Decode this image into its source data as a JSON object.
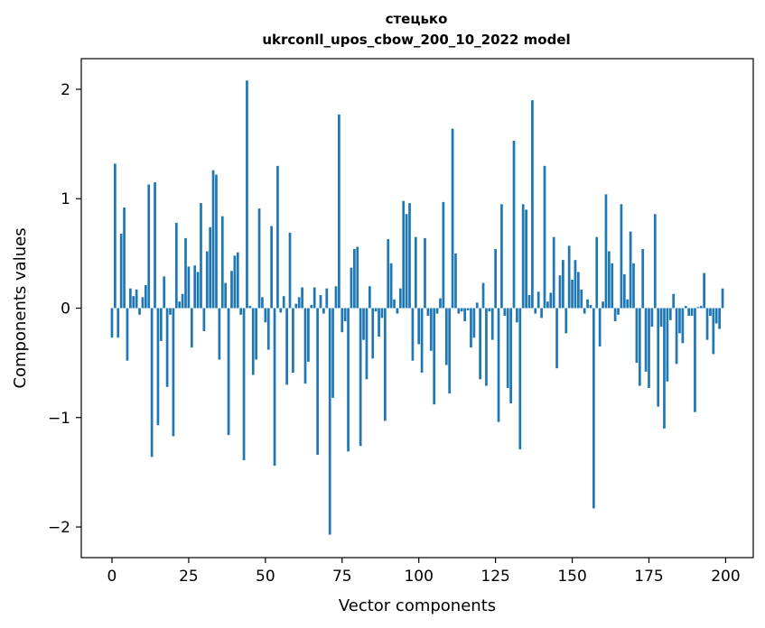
{
  "chart_data": {
    "type": "bar",
    "title_line1": "стецько",
    "title_line2": "ukrconll_upos_cbow_200_10_2022 model",
    "xlabel": "Vector components",
    "ylabel": "Components values",
    "xlim": [
      -10,
      209
    ],
    "ylim": [
      -2.28,
      2.28
    ],
    "xticks": [
      0,
      25,
      50,
      75,
      100,
      125,
      150,
      175,
      200
    ],
    "xtick_labels": [
      "0",
      "25",
      "50",
      "75",
      "100",
      "125",
      "150",
      "175",
      "200"
    ],
    "yticks": [
      -2,
      -1,
      0,
      1,
      2
    ],
    "ytick_labels": [
      "−2",
      "−1",
      "0",
      "1",
      "2"
    ],
    "bar_color": "#1f77b4",
    "grid": false,
    "x": [
      0,
      1,
      2,
      3,
      4,
      5,
      6,
      7,
      8,
      9,
      10,
      11,
      12,
      13,
      14,
      15,
      16,
      17,
      18,
      19,
      20,
      21,
      22,
      23,
      24,
      25,
      26,
      27,
      28,
      29,
      30,
      31,
      32,
      33,
      34,
      35,
      36,
      37,
      38,
      39,
      40,
      41,
      42,
      43,
      44,
      45,
      46,
      47,
      48,
      49,
      50,
      51,
      52,
      53,
      54,
      55,
      56,
      57,
      58,
      59,
      60,
      61,
      62,
      63,
      64,
      65,
      66,
      67,
      68,
      69,
      70,
      71,
      72,
      73,
      74,
      75,
      76,
      77,
      78,
      79,
      80,
      81,
      82,
      83,
      84,
      85,
      86,
      87,
      88,
      89,
      90,
      91,
      92,
      93,
      94,
      95,
      96,
      97,
      98,
      99,
      100,
      101,
      102,
      103,
      104,
      105,
      106,
      107,
      108,
      109,
      110,
      111,
      112,
      113,
      114,
      115,
      116,
      117,
      118,
      119,
      120,
      121,
      122,
      123,
      124,
      125,
      126,
      127,
      128,
      129,
      130,
      131,
      132,
      133,
      134,
      135,
      136,
      137,
      138,
      139,
      140,
      141,
      142,
      143,
      144,
      145,
      146,
      147,
      148,
      149,
      150,
      151,
      152,
      153,
      154,
      155,
      156,
      157,
      158,
      159,
      160,
      161,
      162,
      163,
      164,
      165,
      166,
      167,
      168,
      169,
      170,
      171,
      172,
      173,
      174,
      175,
      176,
      177,
      178,
      179,
      180,
      181,
      182,
      183,
      184,
      185,
      186,
      187,
      188,
      189,
      190,
      191,
      192,
      193,
      194,
      195,
      196,
      197,
      198,
      199
    ],
    "values": [
      -0.27,
      1.32,
      -0.27,
      0.68,
      0.92,
      -0.48,
      0.18,
      0.11,
      0.17,
      -0.06,
      0.1,
      0.21,
      1.13,
      -1.36,
      1.15,
      -1.07,
      -0.3,
      0.29,
      -0.72,
      -0.06,
      -1.17,
      0.78,
      0.06,
      0.13,
      0.64,
      0.38,
      -0.36,
      0.39,
      0.33,
      0.96,
      -0.21,
      0.52,
      0.74,
      1.26,
      1.22,
      -0.47,
      0.84,
      0.23,
      -1.16,
      0.34,
      0.48,
      0.51,
      -0.06,
      -1.39,
      2.08,
      0.02,
      -0.61,
      -0.47,
      0.91,
      0.1,
      -0.13,
      -0.38,
      0.75,
      -1.44,
      1.3,
      -0.04,
      0.11,
      -0.7,
      0.69,
      -0.59,
      0.04,
      0.1,
      0.19,
      -0.69,
      -0.49,
      0.03,
      0.19,
      -1.34,
      0.12,
      -0.05,
      0.18,
      -2.07,
      -0.82,
      0.2,
      1.77,
      -0.22,
      -0.12,
      -1.31,
      0.37,
      0.54,
      0.56,
      -1.26,
      -0.29,
      -0.65,
      0.2,
      -0.46,
      -0.03,
      -0.26,
      -0.09,
      -1.03,
      0.63,
      0.41,
      0.08,
      -0.05,
      0.18,
      0.98,
      0.86,
      0.96,
      -0.48,
      0.65,
      -0.33,
      -0.59,
      0.64,
      -0.07,
      -0.39,
      -0.88,
      -0.05,
      0.09,
      0.97,
      -0.52,
      -0.78,
      1.64,
      0.5,
      -0.05,
      -0.03,
      -0.12,
      -0.02,
      -0.36,
      -0.27,
      0.05,
      -0.65,
      0.23,
      -0.71,
      -0.03,
      -0.29,
      0.54,
      -1.04,
      0.95,
      -0.07,
      -0.73,
      -0.87,
      1.53,
      -0.13,
      -1.29,
      0.95,
      0.9,
      0.12,
      1.9,
      -0.05,
      0.15,
      -0.09,
      1.3,
      0.06,
      0.14,
      0.65,
      -0.55,
      0.3,
      0.44,
      -0.23,
      0.57,
      0.26,
      0.44,
      0.33,
      0.17,
      -0.05,
      0.08,
      0.03,
      -1.83,
      0.65,
      -0.35,
      0.06,
      1.04,
      0.52,
      0.41,
      -0.12,
      -0.06,
      0.95,
      0.31,
      0.08,
      0.7,
      0.41,
      -0.5,
      -0.71,
      0.54,
      -0.58,
      -0.73,
      -0.17,
      0.86,
      -0.9,
      -0.17,
      -1.1,
      -0.67,
      -0.11,
      0.13,
      -0.51,
      -0.23,
      -0.32,
      0.02,
      -0.07,
      -0.07,
      -0.95,
      0.01,
      0.02,
      0.32,
      -0.29,
      -0.07,
      -0.42,
      -0.14,
      -0.19,
      0.18
    ]
  }
}
